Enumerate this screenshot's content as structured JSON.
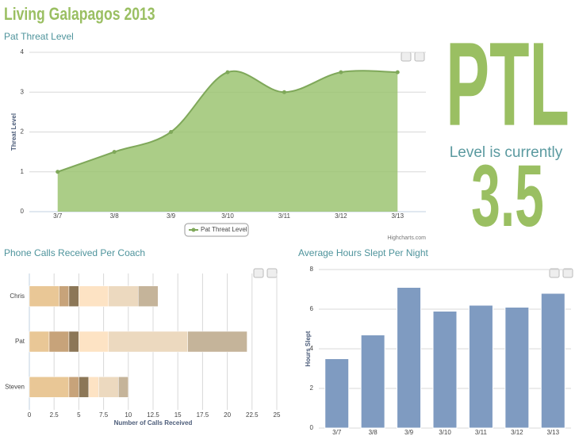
{
  "header": {
    "title": "Living Galapagos 2013"
  },
  "ptl": {
    "abbr": "PTL",
    "caption": "Level is currently",
    "value": 3.5
  },
  "chart_data": [
    {
      "type": "area",
      "title": "Pat Threat Level",
      "y_label": "Threat Level",
      "categories": [
        "3/7",
        "3/8",
        "3/9",
        "3/10",
        "3/11",
        "3/12",
        "3/13"
      ],
      "series": [
        {
          "name": "Pat Threat Level",
          "color": "#9cc472",
          "values": [
            1,
            1.5,
            2,
            3.5,
            3,
            3.5,
            3.5
          ]
        }
      ],
      "ylim": [
        0,
        4
      ],
      "yticks": [
        0,
        1,
        2,
        3,
        4
      ],
      "grid": true,
      "legend": "bottom",
      "credits": "Highcharts.com"
    },
    {
      "type": "stacked-bar",
      "title": "Phone Calls Received Per Coach",
      "x_label": "Number of Calls Received",
      "categories": [
        "Chris",
        "Pat",
        "Steven"
      ],
      "series": [
        {
          "color": "#e9c796",
          "values": [
            3,
            2,
            4
          ]
        },
        {
          "color": "#c7a37a",
          "values": [
            1,
            2,
            1
          ]
        },
        {
          "color": "#8c7757",
          "values": [
            1,
            1,
            1
          ]
        },
        {
          "color": "#fde3c4",
          "values": [
            3,
            3,
            1
          ]
        },
        {
          "color": "#ecd9bf",
          "values": [
            3,
            8,
            2
          ]
        },
        {
          "color": "#c5b49a",
          "values": [
            2,
            6,
            1
          ]
        }
      ],
      "xlim": [
        0,
        25
      ],
      "xticks": [
        0,
        2.5,
        5,
        7.5,
        10,
        12.5,
        15,
        17.5,
        20,
        22.5,
        25
      ],
      "grid": true
    },
    {
      "type": "column",
      "title": "Average Hours Slept Per Night",
      "y_label": "Hours Slept",
      "categories": [
        "3/7",
        "3/8",
        "3/9",
        "3/10",
        "3/11",
        "3/12",
        "3/13"
      ],
      "values": [
        3.5,
        4.7,
        7.1,
        5.9,
        6.2,
        6.1,
        6.8
      ],
      "color": "#7f9bc1",
      "ylim": [
        0,
        8
      ],
      "yticks": [
        0,
        2,
        4,
        6,
        8
      ],
      "grid": true
    }
  ]
}
